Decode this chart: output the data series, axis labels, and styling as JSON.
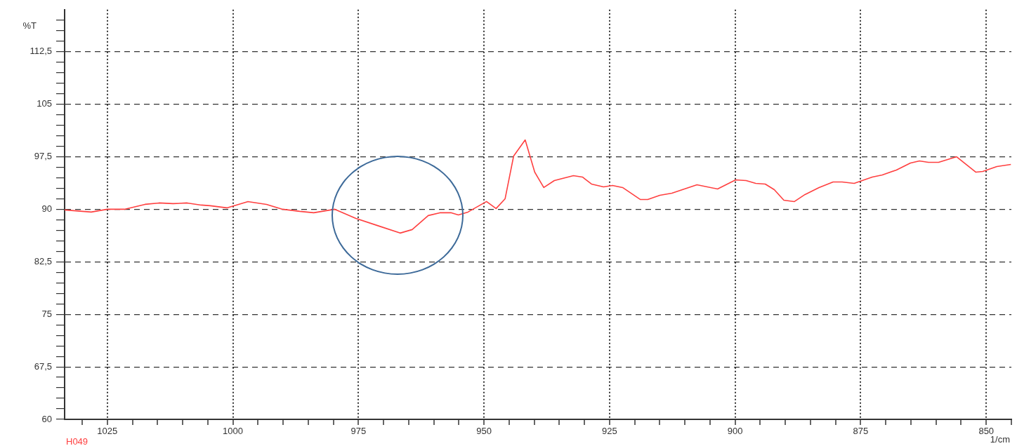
{
  "chart_data": {
    "type": "line",
    "xlabel": "1/cm",
    "ylabel": "%T",
    "x": [
      1033.5,
      1028.2,
      1025,
      1021.6,
      1017.5,
      1014.7,
      1011.9,
      1009.1,
      1006.3,
      1004.5,
      1001.2,
      997.0,
      993.3,
      990.1,
      986.7,
      983.9,
      979.7,
      975.5,
      970.9,
      966.7,
      964.3,
      961.1,
      958.8,
      956.5,
      955.1,
      953.2,
      949.5,
      947.6,
      945.8,
      944.1,
      941.8,
      939.9,
      938.1,
      936.0,
      932.2,
      930.4,
      928.6,
      926.2,
      924.4,
      922.4,
      918.9,
      917.4,
      915.0,
      912.6,
      907.6,
      903.5,
      899.9,
      897.8,
      895.9,
      894.0,
      892.2,
      890.3,
      888.2,
      886.1,
      883.3,
      880.5,
      878.7,
      876.3,
      872.7,
      870.7,
      867.9,
      865.1,
      863.3,
      861.5,
      859.5,
      855.9,
      852.1,
      850.7,
      847.9,
      845.1
    ],
    "series": [
      {
        "name": "H049",
        "color": "#ff4040",
        "values": [
          89.9,
          89.6,
          90.0,
          90.0,
          90.7,
          90.9,
          90.8,
          90.9,
          90.6,
          90.5,
          90.2,
          91.1,
          90.7,
          90.0,
          89.7,
          89.5,
          90.0,
          88.7,
          87.6,
          86.6,
          87.1,
          89.1,
          89.5,
          89.5,
          89.2,
          89.6,
          91.1,
          90.1,
          91.5,
          97.6,
          99.9,
          95.3,
          93.1,
          94.1,
          94.8,
          94.6,
          93.6,
          93.2,
          93.4,
          93.1,
          91.4,
          91.4,
          92.0,
          92.3,
          93.5,
          92.9,
          94.2,
          94.1,
          93.7,
          93.6,
          92.8,
          91.3,
          91.1,
          92.1,
          93.1,
          93.9,
          93.9,
          93.7,
          94.6,
          94.9,
          95.6,
          96.6,
          96.9,
          96.7,
          96.7,
          97.5,
          95.3,
          95.4,
          96.1,
          96.4
        ]
      }
    ],
    "xlim": [
      1033.5,
      845
    ],
    "xticks": [
      {
        "value": 1030,
        "label": null
      },
      1025,
      {
        "value": 1020,
        "label": null
      },
      {
        "value": 1015,
        "label": null
      },
      {
        "value": 1010,
        "label": null
      },
      {
        "value": 1005,
        "label": null
      },
      1000,
      {
        "value": 995,
        "label": null
      },
      {
        "value": 990,
        "label": null
      },
      {
        "value": 985,
        "label": null
      },
      {
        "value": 980,
        "label": null
      },
      975,
      {
        "value": 970,
        "label": null
      },
      {
        "value": 965,
        "label": null
      },
      {
        "value": 960,
        "label": null
      },
      {
        "value": 955,
        "label": null
      },
      950,
      {
        "value": 945,
        "label": null
      },
      {
        "value": 940,
        "label": null
      },
      {
        "value": 935,
        "label": null
      },
      {
        "value": 930,
        "label": null
      },
      925,
      {
        "value": 920,
        "label": null
      },
      {
        "value": 915,
        "label": null
      },
      {
        "value": 910,
        "label": null
      },
      {
        "value": 905,
        "label": null
      },
      900,
      {
        "value": 895,
        "label": null
      },
      {
        "value": 890,
        "label": null
      },
      {
        "value": 885,
        "label": null
      },
      {
        "value": 880,
        "label": null
      },
      875,
      {
        "value": 870,
        "label": null
      },
      {
        "value": 865,
        "label": null
      },
      {
        "value": 860,
        "label": null
      },
      {
        "value": 855,
        "label": null
      },
      850,
      {
        "value": 845,
        "label": null
      }
    ],
    "ylim": [
      60,
      118.5
    ],
    "yticks": [
      60,
      {
        "value": 61.5,
        "label": null
      },
      {
        "value": 63,
        "label": null
      },
      {
        "value": 64.5,
        "label": null
      },
      {
        "value": 66,
        "label": null
      },
      {
        "value": 67.5,
        "label": "67,5"
      },
      {
        "value": 69,
        "label": null
      },
      {
        "value": 70.5,
        "label": null
      },
      {
        "value": 72,
        "label": null
      },
      {
        "value": 73.5,
        "label": null
      },
      75,
      {
        "value": 76.5,
        "label": null
      },
      {
        "value": 78,
        "label": null
      },
      {
        "value": 79.5,
        "label": null
      },
      {
        "value": 81,
        "label": null
      },
      {
        "value": 82.5,
        "label": "82,5"
      },
      {
        "value": 84,
        "label": null
      },
      {
        "value": 85.5,
        "label": null
      },
      {
        "value": 87,
        "label": null
      },
      {
        "value": 88.5,
        "label": null
      },
      90,
      {
        "value": 91.5,
        "label": null
      },
      {
        "value": 93,
        "label": null
      },
      {
        "value": 94.5,
        "label": null
      },
      {
        "value": 96,
        "label": null
      },
      {
        "value": 97.5,
        "label": "97,5"
      },
      {
        "value": 99,
        "label": null
      },
      {
        "value": 100.5,
        "label": null
      },
      {
        "value": 102,
        "label": null
      },
      {
        "value": 103.5,
        "label": null
      },
      105,
      {
        "value": 106.5,
        "label": null
      },
      {
        "value": 108,
        "label": null
      },
      {
        "value": 109.5,
        "label": null
      },
      {
        "value": 111,
        "label": null
      },
      {
        "value": 112.5,
        "label": "112,5"
      },
      {
        "value": 114,
        "label": null
      },
      {
        "value": 115.5,
        "label": null
      },
      {
        "value": 117,
        "label": null
      }
    ],
    "grid": true,
    "marker": "none",
    "line_style": "solid"
  }
}
